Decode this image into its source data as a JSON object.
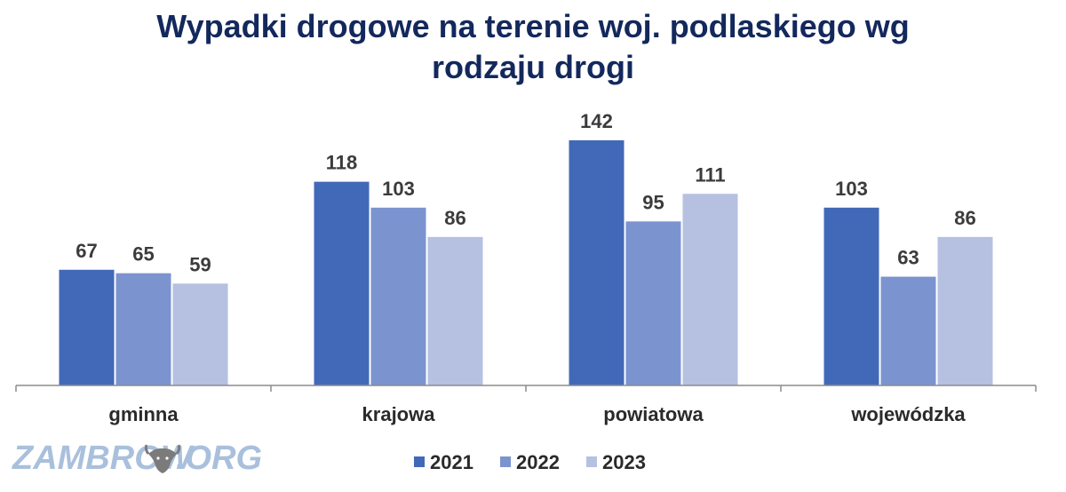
{
  "chart_data": {
    "type": "bar",
    "title_lines": [
      "Wypadki drogowe na terenie woj. podlaskiego wg",
      "rodzaju drogi"
    ],
    "categories": [
      "gminna",
      "krajowa",
      "powiatowa",
      "wojewódzka"
    ],
    "series": [
      {
        "name": "2021",
        "values": [
          67,
          118,
          142,
          103
        ],
        "color": "#4169b8"
      },
      {
        "name": "2022",
        "values": [
          65,
          103,
          95,
          63
        ],
        "color": "#7b94d0"
      },
      {
        "name": "2023",
        "values": [
          59,
          86,
          111,
          86
        ],
        "color": "#b6c0e1"
      }
    ],
    "ylim": [
      0,
      142
    ],
    "grid": false,
    "legend_position": "bottom-center",
    "data_labels": true
  },
  "watermark": {
    "text_left": "ZAMBROW",
    "text_right": ".ORG",
    "icon": "bison-head-icon",
    "color": "#a9c0dd"
  },
  "colors": {
    "title": "#13285c",
    "axis": "#8c8c8c"
  }
}
